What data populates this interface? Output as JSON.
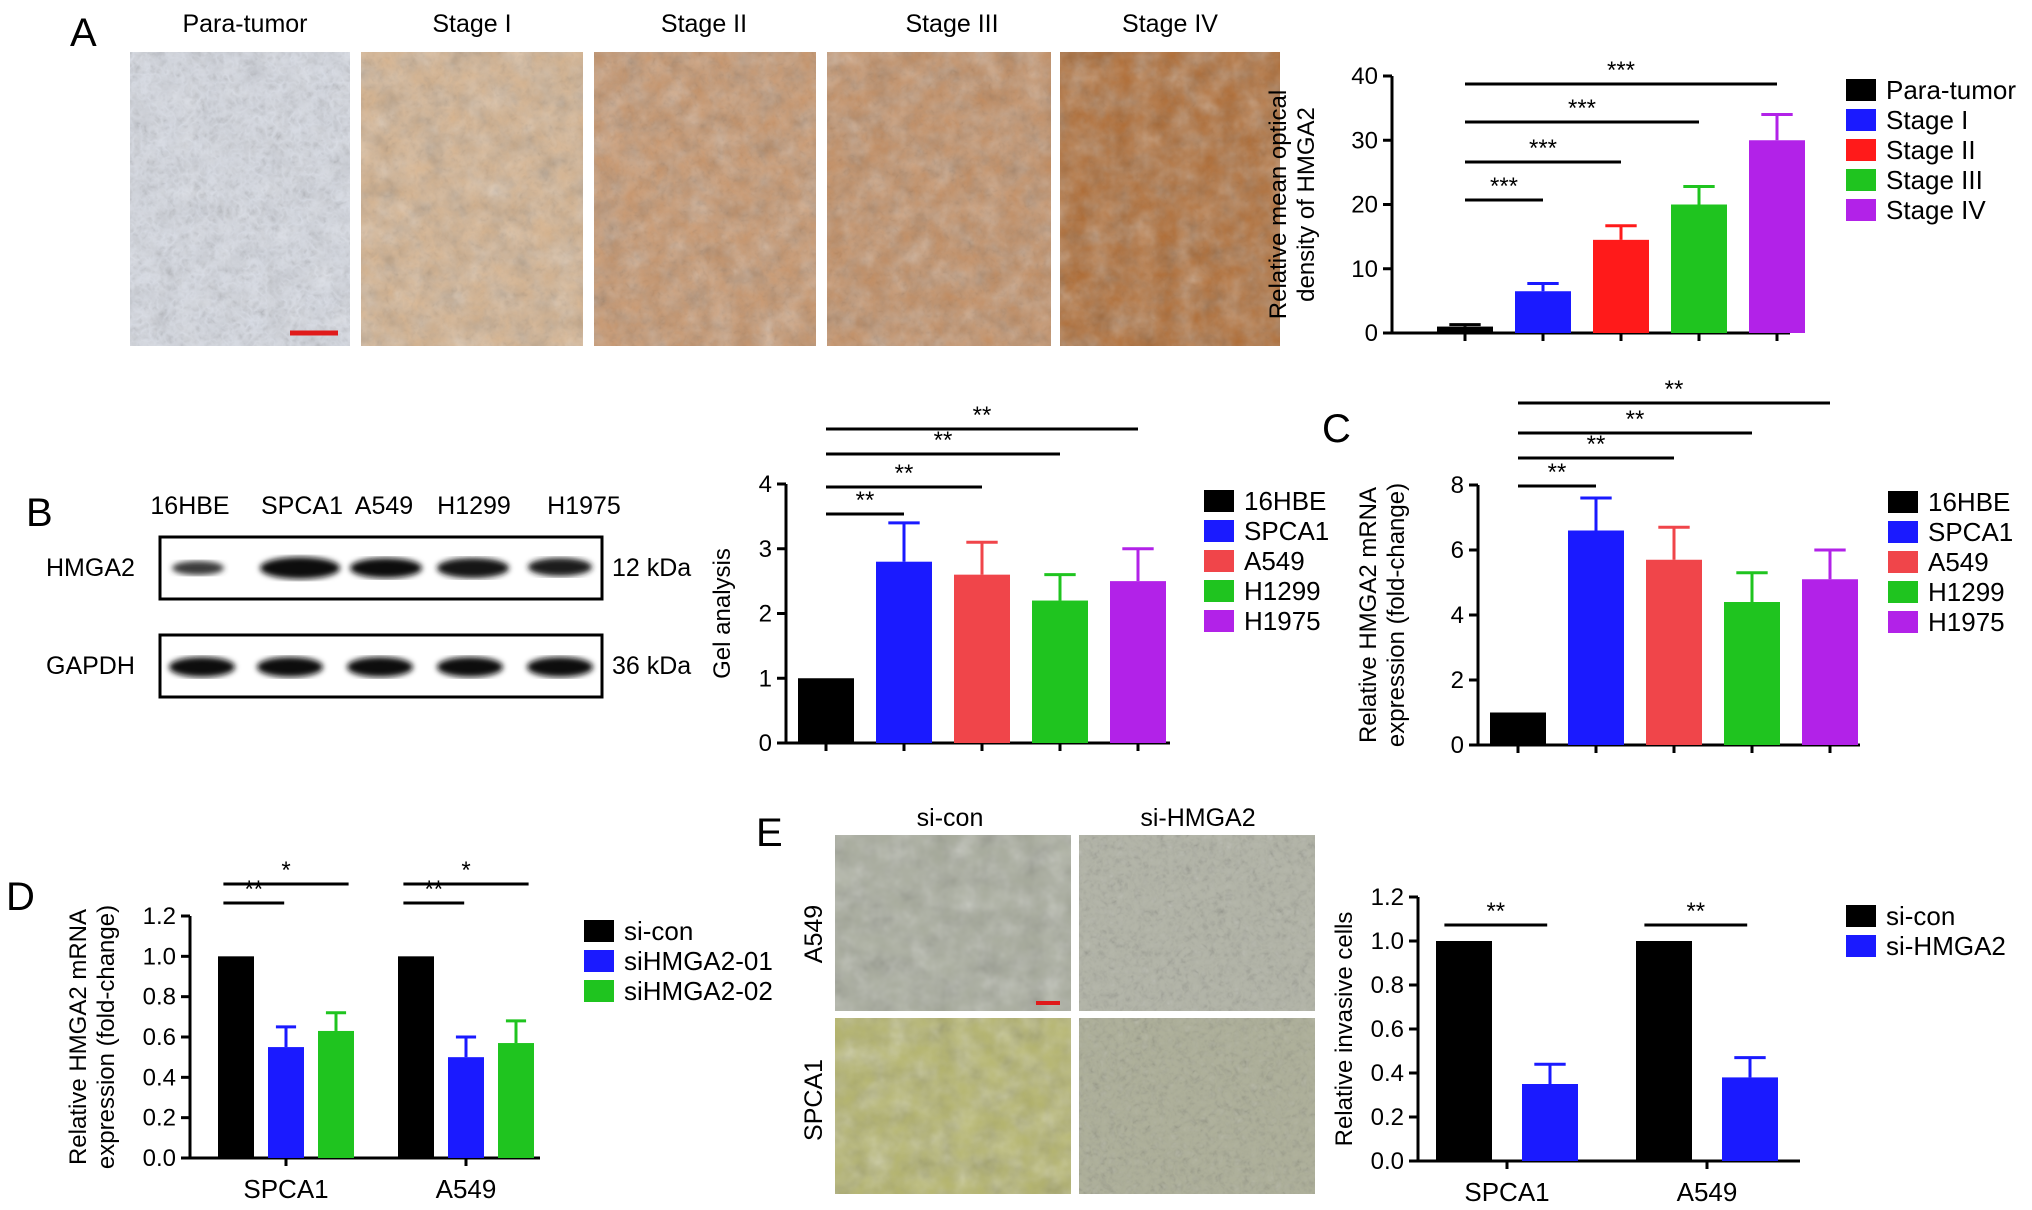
{
  "panels": {
    "A": {
      "letter": "A",
      "image_labels": [
        "Para-tumor",
        "Stage I",
        "Stage II",
        "Stage III",
        "Stage IV"
      ]
    },
    "B": {
      "letter": "B",
      "lanes": [
        "16HBE",
        "SPCA1",
        "A549",
        "H1299",
        "H1975"
      ],
      "bands": [
        {
          "protein": "HMGA2",
          "size": "12 kDa"
        },
        {
          "protein": "GAPDH",
          "size": "36 kDa"
        }
      ]
    },
    "C": {
      "letter": "C"
    },
    "D": {
      "letter": "D"
    },
    "E": {
      "letter": "E",
      "col_labels": [
        "si-con",
        "si-HMGA2"
      ],
      "row_labels": [
        "A549",
        "SPCA1"
      ]
    }
  },
  "colors": {
    "black": "#000000",
    "blue": "#1a1aff",
    "red": "#ff1a1a",
    "salmon": "#f0454a",
    "green": "#1fc41f",
    "purple": "#b222e8",
    "ihc_stain": "#b0662a",
    "transwell_stain": "#6a4aa8"
  },
  "chart_data": [
    {
      "id": "A",
      "type": "bar",
      "categories": [
        "Para-tumor",
        "Stage I",
        "Stage II",
        "Stage III",
        "Stage IV"
      ],
      "values": [
        1,
        6.5,
        14.5,
        20,
        30
      ],
      "errors": [
        0.3,
        1.2,
        2.2,
        2.8,
        4
      ],
      "colors": [
        "#000000",
        "#1a1aff",
        "#ff1a1a",
        "#1fc41f",
        "#b222e8"
      ],
      "ylabel": [
        "Relative mean optical",
        "density of HMGA2"
      ],
      "ylim": [
        0,
        40
      ],
      "yticks": [
        0,
        10,
        20,
        30,
        40
      ],
      "legend": [
        "Para-tumor",
        "Stage I",
        "Stage II",
        "Stage III",
        "Stage IV"
      ],
      "legend_position": "right",
      "significance": [
        {
          "from": 0,
          "to": 1,
          "label": "***"
        },
        {
          "from": 0,
          "to": 2,
          "label": "***"
        },
        {
          "from": 0,
          "to": 3,
          "label": "***"
        },
        {
          "from": 0,
          "to": 4,
          "label": "***"
        }
      ]
    },
    {
      "id": "B",
      "type": "bar",
      "categories": [
        "16HBE",
        "SPCA1",
        "A549",
        "H1299",
        "H1975"
      ],
      "values": [
        1,
        2.8,
        2.6,
        2.2,
        2.5
      ],
      "errors": [
        0,
        0.6,
        0.5,
        0.4,
        0.5
      ],
      "colors": [
        "#000000",
        "#1a1aff",
        "#f0454a",
        "#1fc41f",
        "#b222e8"
      ],
      "ylabel": [
        "Gel analysis"
      ],
      "ylim": [
        0,
        4
      ],
      "yticks": [
        0,
        1,
        2,
        3,
        4
      ],
      "legend": [
        "16HBE",
        "SPCA1",
        "A549",
        "H1299",
        "H1975"
      ],
      "legend_position": "right",
      "significance": [
        {
          "from": 0,
          "to": 1,
          "label": "**"
        },
        {
          "from": 0,
          "to": 2,
          "label": "**"
        },
        {
          "from": 0,
          "to": 3,
          "label": "**"
        },
        {
          "from": 0,
          "to": 4,
          "label": "**"
        }
      ]
    },
    {
      "id": "C",
      "type": "bar",
      "categories": [
        "16HBE",
        "SPCA1",
        "A549",
        "H1299",
        "H1975"
      ],
      "values": [
        1,
        6.6,
        5.7,
        4.4,
        5.1
      ],
      "errors": [
        0,
        1,
        1,
        0.9,
        0.9
      ],
      "colors": [
        "#000000",
        "#1a1aff",
        "#f0454a",
        "#1fc41f",
        "#b222e8"
      ],
      "ylabel": [
        "Relative HMGA2 mRNA",
        "expression (fold-change)"
      ],
      "ylim": [
        0,
        8
      ],
      "yticks": [
        0,
        2,
        4,
        6,
        8
      ],
      "legend": [
        "16HBE",
        "SPCA1",
        "A549",
        "H1299",
        "H1975"
      ],
      "legend_position": "right",
      "significance": [
        {
          "from": 0,
          "to": 1,
          "label": "**"
        },
        {
          "from": 0,
          "to": 2,
          "label": "**"
        },
        {
          "from": 0,
          "to": 3,
          "label": "**"
        },
        {
          "from": 0,
          "to": 4,
          "label": "**"
        }
      ]
    },
    {
      "id": "D",
      "type": "bar",
      "categories": [
        "SPCA1",
        "A549"
      ],
      "series": [
        {
          "name": "si-con",
          "values": [
            1.0,
            1.0
          ],
          "errors": [
            0,
            0
          ],
          "color": "#000000"
        },
        {
          "name": "siHMGA2-01",
          "values": [
            0.55,
            0.5
          ],
          "errors": [
            0.1,
            0.1
          ],
          "color": "#1a1aff"
        },
        {
          "name": "siHMGA2-02",
          "values": [
            0.63,
            0.57
          ],
          "errors": [
            0.09,
            0.11
          ],
          "color": "#1fc41f"
        }
      ],
      "ylabel": [
        "Relative HMGA2 mRNA",
        "expression (fold-change)"
      ],
      "ylim": [
        0,
        1.2
      ],
      "yticks": [
        0,
        0.2,
        0.4,
        0.6,
        0.8,
        1.0,
        1.2
      ],
      "yticklabels": [
        "0.0",
        "0.2",
        "0.4",
        "0.6",
        "0.8",
        "1.0",
        "1.2"
      ],
      "legend_position": "right",
      "significance": [
        {
          "group": 0,
          "from": 0,
          "to": 1,
          "label": "**"
        },
        {
          "group": 0,
          "from": 0,
          "to": 2,
          "label": "*"
        },
        {
          "group": 1,
          "from": 0,
          "to": 1,
          "label": "**"
        },
        {
          "group": 1,
          "from": 0,
          "to": 2,
          "label": "*"
        }
      ]
    },
    {
      "id": "E",
      "type": "bar",
      "categories": [
        "SPCA1",
        "A549"
      ],
      "series": [
        {
          "name": "si-con",
          "values": [
            1.0,
            1.0
          ],
          "errors": [
            0,
            0
          ],
          "color": "#000000"
        },
        {
          "name": "si-HMGA2",
          "values": [
            0.35,
            0.38
          ],
          "errors": [
            0.09,
            0.09
          ],
          "color": "#1a1aff"
        }
      ],
      "ylabel": [
        "Relative invasive cells"
      ],
      "ylim": [
        0,
        1.2
      ],
      "yticks": [
        0,
        0.2,
        0.4,
        0.6,
        0.8,
        1.0,
        1.2
      ],
      "yticklabels": [
        "0.0",
        "0.2",
        "0.4",
        "0.6",
        "0.8",
        "1.0",
        "1.2"
      ],
      "legend_position": "right",
      "significance": [
        {
          "group": 0,
          "from": 0,
          "to": 1,
          "label": "**"
        },
        {
          "group": 1,
          "from": 0,
          "to": 1,
          "label": "**"
        }
      ]
    }
  ]
}
